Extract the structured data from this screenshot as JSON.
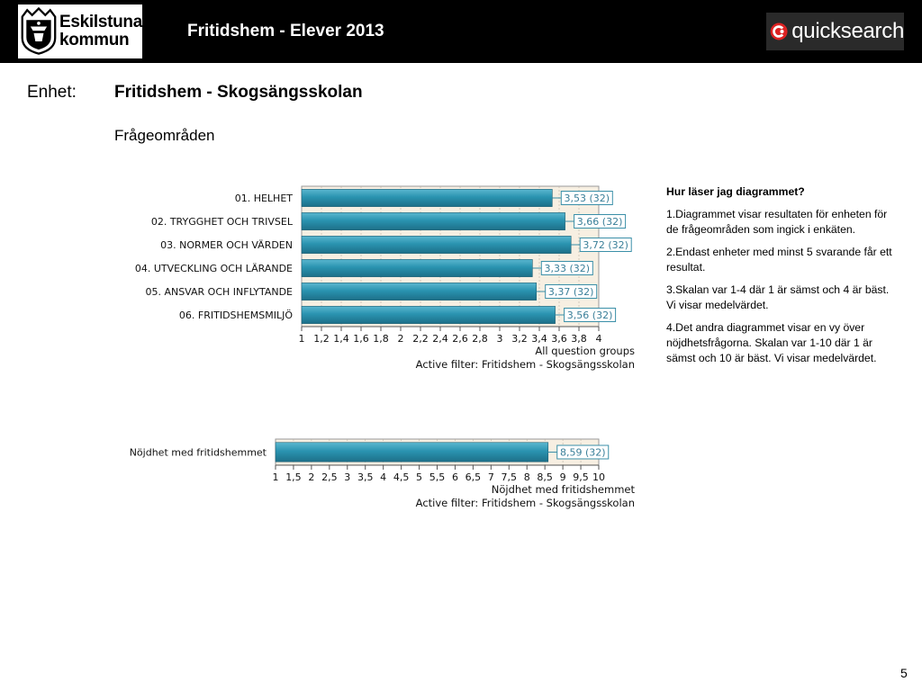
{
  "header": {
    "logo_text_line1": "Eskilstuna",
    "logo_text_line2": "kommun",
    "title": "Fritidshem - Elever 2013",
    "right_logo_text": "quicksearch"
  },
  "unit": {
    "label": "Enhet:",
    "value": "Fritidshem - Skogsängsskolan"
  },
  "subtitle": "Frågeområden",
  "help": {
    "title": "Hur läser jag diagrammet?",
    "items": [
      "1.Diagrammet visar resultaten för enheten för de frågeområden som ingick i enkäten.",
      "2.Endast enheter med minst  5 svarande får ett resultat.",
      "3.Skalan var 1-4 där 1 är sämst och 4 är bäst. Vi visar medelvärdet.",
      "4.Det andra diagrammet visar en vy över nöjdhetsfrågorna. Skalan var 1-10 där 1 är sämst och 10 är bäst. Vi visar medelvärdet."
    ]
  },
  "page_number": "5",
  "colors": {
    "bar": "#2a93b0",
    "bar_dark": "#1d6f88",
    "bar_light": "#5bb7cf",
    "plot_bg": "#f7efe2",
    "grid": "#b9b0a2",
    "label_border": "#3a8fa8"
  },
  "chart_data": [
    {
      "type": "bar",
      "orientation": "horizontal",
      "categories": [
        "01. HELHET",
        "02. TRYGGHET OCH TRIVSEL",
        "03. NORMER OCH VÄRDEN",
        "04. UTVECKLING OCH LÄRANDE",
        "05. ANSVAR OCH INFLYTANDE",
        "06. FRITIDSHEMSMILJÖ"
      ],
      "values": [
        3.53,
        3.66,
        3.72,
        3.33,
        3.37,
        3.56
      ],
      "data_labels": [
        "3,53 (32)",
        "3,66 (32)",
        "3,72 (32)",
        "3,33 (32)",
        "3,37 (32)",
        "3,56 (32)"
      ],
      "xlim": [
        1,
        4
      ],
      "ticks": [
        1,
        1.2,
        1.4,
        1.6,
        1.8,
        2,
        2.2,
        2.4,
        2.6,
        2.8,
        3,
        3.2,
        3.4,
        3.6,
        3.8,
        4
      ],
      "tick_labels": [
        "1",
        "1,2",
        "1,4",
        "1,6",
        "1,8",
        "2",
        "2,2",
        "2,4",
        "2,6",
        "2,8",
        "3",
        "3,2",
        "3,4",
        "3,6",
        "3,8",
        "4"
      ],
      "xlabel": "All question groups",
      "footnote": "Active filter: Fritidshem - Skogsängsskolan",
      "grid": true
    },
    {
      "type": "bar",
      "orientation": "horizontal",
      "categories": [
        "Nöjdhet med fritidshemmet"
      ],
      "values": [
        8.59
      ],
      "data_labels": [
        "8,59 (32)"
      ],
      "xlim": [
        1,
        10
      ],
      "ticks": [
        1,
        1.5,
        2,
        2.5,
        3,
        3.5,
        4,
        4.5,
        5,
        5.5,
        6,
        6.5,
        7,
        7.5,
        8,
        8.5,
        9,
        9.5,
        10
      ],
      "tick_labels": [
        "1",
        "1,5",
        "2",
        "2,5",
        "3",
        "3,5",
        "4",
        "4,5",
        "5",
        "5,5",
        "6",
        "6,5",
        "7",
        "7,5",
        "8",
        "8,5",
        "9",
        "9,5",
        "10"
      ],
      "xlabel": "Nöjdhet med fritidshemmet",
      "footnote": "Active filter: Fritidshem - Skogsängsskolan",
      "grid": true
    }
  ]
}
